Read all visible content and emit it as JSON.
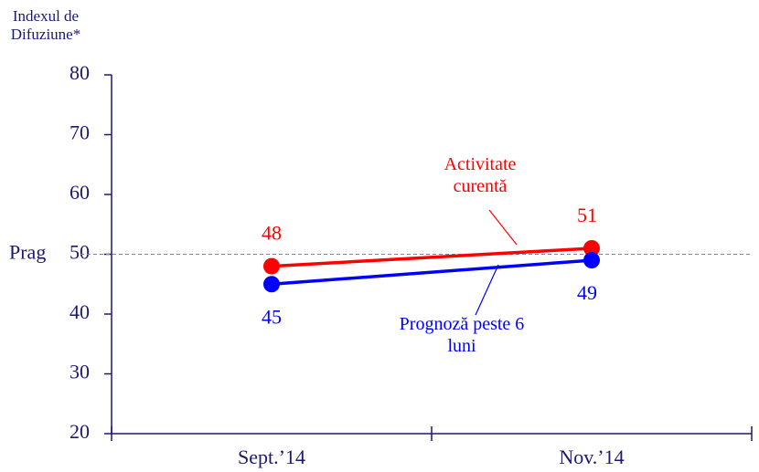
{
  "chart_data": {
    "type": "line",
    "y_axis_label": "Indexul de Difuziune*",
    "categories": [
      "Sept.’14",
      "Nov.’14"
    ],
    "series": [
      {
        "name": "Activitate curentă",
        "color": "#ff0000",
        "values": [
          48,
          51
        ]
      },
      {
        "name": "Prognoză peste 6 luni",
        "color": "#0000ff",
        "values": [
          45,
          49
        ]
      }
    ],
    "threshold": {
      "label": "Prag",
      "value": 50
    },
    "ylim": [
      20,
      80
    ],
    "yticks": [
      20,
      30,
      40,
      50,
      60,
      70,
      80
    ]
  }
}
